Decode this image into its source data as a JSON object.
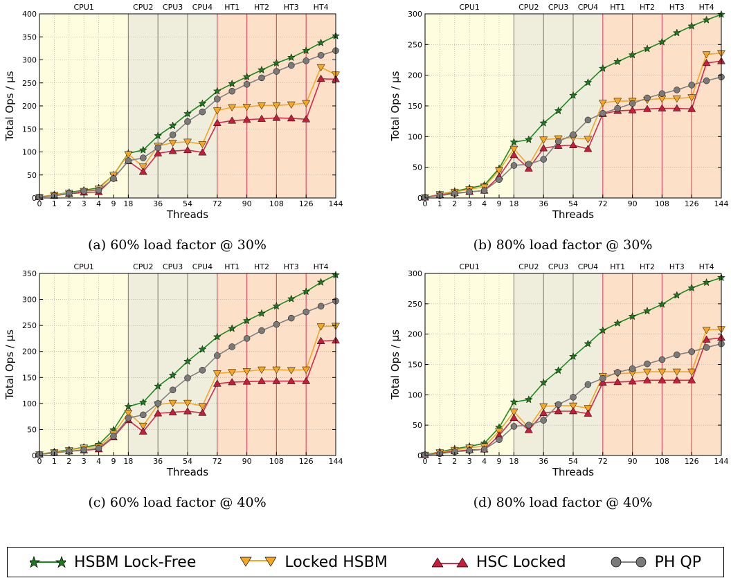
{
  "chart_data": [
    {
      "type": "line",
      "caption": "(a) 60% load factor @ 30%",
      "xlabel": "Threads",
      "ylabel": "Total Ops / μs",
      "ylim": [
        0,
        400
      ],
      "yticks": [
        0,
        50,
        100,
        150,
        200,
        250,
        300,
        350,
        400
      ],
      "x": [
        "0",
        "1",
        "2",
        "3",
        "4",
        "9",
        "18",
        "27",
        "36",
        "45",
        "54",
        "63",
        "72",
        "81",
        "90",
        "99",
        "108",
        "117",
        "126",
        "135",
        "144"
      ],
      "xtick_labels": [
        "0",
        "1",
        "2",
        "3",
        "4",
        "9",
        "18",
        "36",
        "54",
        "72",
        "90",
        "108",
        "126",
        "144"
      ],
      "regions": [
        "CPU1",
        "CPU2",
        "CPU3",
        "CPU4",
        "HT1",
        "HT2",
        "HT3",
        "HT4"
      ],
      "series": [
        {
          "name": "HSBM Lock-Free",
          "values": [
            2,
            7,
            12,
            17,
            22,
            50,
            97,
            104,
            135,
            157,
            183,
            205,
            232,
            248,
            263,
            278,
            293,
            305,
            320,
            337,
            352
          ]
        },
        {
          "name": "Locked HSBM",
          "values": [
            2,
            7,
            11,
            15,
            20,
            50,
            95,
            68,
            113,
            120,
            122,
            117,
            190,
            197,
            198,
            201,
            201,
            203,
            206,
            284,
            268
          ]
        },
        {
          "name": "HSC Locked",
          "values": [
            2,
            5,
            9,
            12,
            13,
            43,
            80,
            57,
            97,
            102,
            104,
            99,
            163,
            168,
            170,
            172,
            174,
            173,
            171,
            259,
            258
          ]
        },
        {
          "name": "PH QP",
          "values": [
            2,
            5,
            10,
            15,
            17,
            42,
            81,
            87,
            109,
            137,
            166,
            187,
            215,
            232,
            247,
            261,
            275,
            288,
            298,
            310,
            320
          ]
        }
      ]
    },
    {
      "type": "line",
      "caption": "(b) 80% load factor @ 30%",
      "xlabel": "Threads",
      "ylabel": "Total Ops / μs",
      "ylim": [
        0,
        300
      ],
      "yticks": [
        0,
        50,
        100,
        150,
        200,
        250,
        300
      ],
      "x": [
        "0",
        "1",
        "2",
        "3",
        "4",
        "9",
        "18",
        "27",
        "36",
        "45",
        "54",
        "63",
        "72",
        "81",
        "90",
        "99",
        "108",
        "117",
        "126",
        "135",
        "144"
      ],
      "xtick_labels": [
        "0",
        "1",
        "2",
        "3",
        "4",
        "9",
        "18",
        "36",
        "54",
        "72",
        "90",
        "108",
        "126",
        "144"
      ],
      "regions": [
        "CPU1",
        "CPU2",
        "CPU3",
        "CPU4",
        "HT1",
        "HT2",
        "HT3",
        "HT4"
      ],
      "series": [
        {
          "name": "HSBM Lock-Free",
          "values": [
            1,
            6,
            11,
            16,
            21,
            48,
            91,
            95,
            122,
            142,
            167,
            188,
            211,
            222,
            233,
            243,
            254,
            269,
            280,
            290,
            299
          ]
        },
        {
          "name": "Locked HSBM",
          "values": [
            1,
            6,
            10,
            14,
            18,
            45,
            80,
            53,
            95,
            97,
            98,
            96,
            155,
            158,
            158,
            160,
            162,
            162,
            164,
            234,
            236
          ]
        },
        {
          "name": "HSC Locked",
          "values": [
            1,
            5,
            8,
            10,
            12,
            35,
            70,
            48,
            81,
            85,
            86,
            80,
            137,
            142,
            143,
            145,
            146,
            146,
            145,
            220,
            223
          ]
        },
        {
          "name": "PH QP",
          "values": [
            1,
            4,
            7,
            10,
            12,
            30,
            53,
            55,
            63,
            92,
            103,
            127,
            138,
            146,
            154,
            163,
            170,
            176,
            184,
            191,
            197
          ]
        }
      ]
    },
    {
      "type": "line",
      "caption": "(c) 60% load factor @ 40%",
      "xlabel": "Threads",
      "ylabel": "Total Ops / μs",
      "ylim": [
        0,
        350
      ],
      "yticks": [
        0,
        50,
        100,
        150,
        200,
        250,
        300,
        350
      ],
      "x": [
        "0",
        "1",
        "2",
        "3",
        "4",
        "9",
        "18",
        "27",
        "36",
        "45",
        "54",
        "63",
        "72",
        "81",
        "90",
        "99",
        "108",
        "117",
        "126",
        "135",
        "144"
      ],
      "xtick_labels": [
        "0",
        "1",
        "2",
        "3",
        "4",
        "9",
        "18",
        "36",
        "54",
        "72",
        "90",
        "108",
        "126",
        "144"
      ],
      "regions": [
        "CPU1",
        "CPU2",
        "CPU3",
        "CPU4",
        "HT1",
        "HT2",
        "HT3",
        "HT4"
      ],
      "series": [
        {
          "name": "HSBM Lock-Free",
          "values": [
            2,
            7,
            11,
            16,
            21,
            49,
            94,
            102,
            133,
            154,
            181,
            204,
            228,
            244,
            259,
            273,
            287,
            301,
            315,
            333,
            347
          ]
        },
        {
          "name": "Locked HSBM",
          "values": [
            2,
            6,
            10,
            15,
            17,
            42,
            82,
            57,
            98,
            101,
            101,
            95,
            158,
            160,
            162,
            165,
            165,
            164,
            165,
            248,
            249
          ]
        },
        {
          "name": "HSC Locked",
          "values": [
            2,
            5,
            8,
            10,
            12,
            35,
            68,
            46,
            81,
            83,
            85,
            82,
            138,
            141,
            142,
            143,
            143,
            143,
            143,
            220,
            221
          ]
        },
        {
          "name": "PH QP",
          "values": [
            2,
            5,
            8,
            11,
            14,
            37,
            72,
            78,
            100,
            126,
            149,
            164,
            192,
            209,
            225,
            240,
            252,
            264,
            276,
            287,
            297
          ]
        }
      ]
    },
    {
      "type": "line",
      "caption": "(d) 80% load factor @ 40%",
      "xlabel": "Threads",
      "ylabel": "Total Ops / μs",
      "ylim": [
        0,
        300
      ],
      "yticks": [
        0,
        50,
        100,
        150,
        200,
        250,
        300
      ],
      "x": [
        "0",
        "1",
        "2",
        "3",
        "4",
        "9",
        "18",
        "27",
        "36",
        "45",
        "54",
        "63",
        "72",
        "81",
        "90",
        "99",
        "108",
        "117",
        "126",
        "135",
        "144"
      ],
      "xtick_labels": [
        "0",
        "1",
        "2",
        "3",
        "4",
        "9",
        "18",
        "36",
        "54",
        "72",
        "90",
        "108",
        "126",
        "144"
      ],
      "regions": [
        "CPU1",
        "CPU2",
        "CPU3",
        "CPU4",
        "HT1",
        "HT2",
        "HT3",
        "HT4"
      ],
      "series": [
        {
          "name": "HSBM Lock-Free",
          "values": [
            1,
            6,
            11,
            15,
            20,
            46,
            88,
            92,
            120,
            140,
            163,
            184,
            206,
            218,
            229,
            238,
            249,
            264,
            276,
            285,
            293
          ]
        },
        {
          "name": "Locked HSBM",
          "values": [
            1,
            5,
            9,
            13,
            15,
            40,
            72,
            46,
            81,
            82,
            82,
            78,
            131,
            135,
            136,
            138,
            138,
            138,
            138,
            207,
            208
          ]
        },
        {
          "name": "HSC Locked",
          "values": [
            1,
            4,
            7,
            9,
            10,
            33,
            62,
            42,
            70,
            73,
            73,
            69,
            120,
            121,
            122,
            124,
            124,
            124,
            124,
            191,
            194
          ]
        },
        {
          "name": "PH QP",
          "values": [
            1,
            3,
            6,
            8,
            10,
            26,
            48,
            50,
            58,
            84,
            96,
            117,
            127,
            137,
            143,
            151,
            158,
            166,
            171,
            178,
            184
          ]
        }
      ]
    }
  ],
  "legend": [
    {
      "label": "HSBM Lock-Free",
      "color": "#1a8a1a",
      "marker": "star-icon",
      "marker_color": "#1f7a1f"
    },
    {
      "label": "Locked HSBM",
      "color": "#f5a623",
      "marker": "triangle-down-icon",
      "marker_color": "#f5a623"
    },
    {
      "label": "HSC Locked",
      "color": "#d6274a",
      "marker": "triangle-up-icon",
      "marker_color": "#c41e3a"
    },
    {
      "label": "PH QP",
      "color": "#808080",
      "marker": "circle-icon",
      "marker_color": "#7a7a7a"
    }
  ],
  "colors": {
    "cpu1_bg": "#fffde0",
    "cpu_bg": "#efeddc",
    "ht_bg": "#fde0c8",
    "cpu_divider": "#8a8a78",
    "ht_divider": "#e0506a"
  }
}
